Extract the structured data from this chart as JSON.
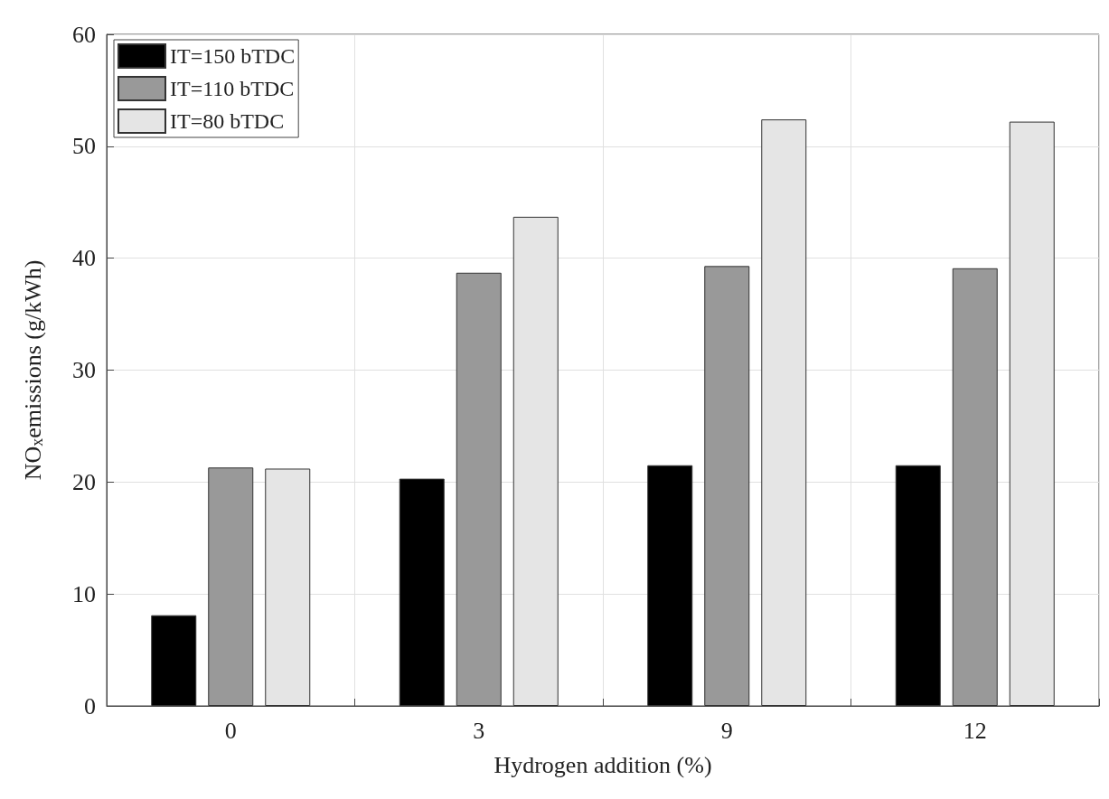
{
  "chart_data": {
    "type": "bar",
    "xlabel": "Hydrogen addition (%)",
    "ylabel": "NO$_{x}$emissions (g/kWh)",
    "categories": [
      "0",
      "3",
      "9",
      "12"
    ],
    "series": [
      {
        "name": "IT=150 bTDC",
        "color": "#000000",
        "values": [
          8.1,
          20.3,
          21.5,
          21.5
        ]
      },
      {
        "name": "IT=110 bTDC",
        "color": "#999999",
        "values": [
          21.3,
          38.7,
          39.3,
          39.1
        ]
      },
      {
        "name": "IT=80 bTDC",
        "color": "#e5e5e5",
        "values": [
          21.2,
          43.7,
          52.4,
          52.2
        ]
      }
    ],
    "ylim": [
      0,
      60
    ],
    "yticks": [
      0,
      10,
      20,
      30,
      40,
      50,
      60
    ],
    "grid": true,
    "legend": "top left"
  }
}
